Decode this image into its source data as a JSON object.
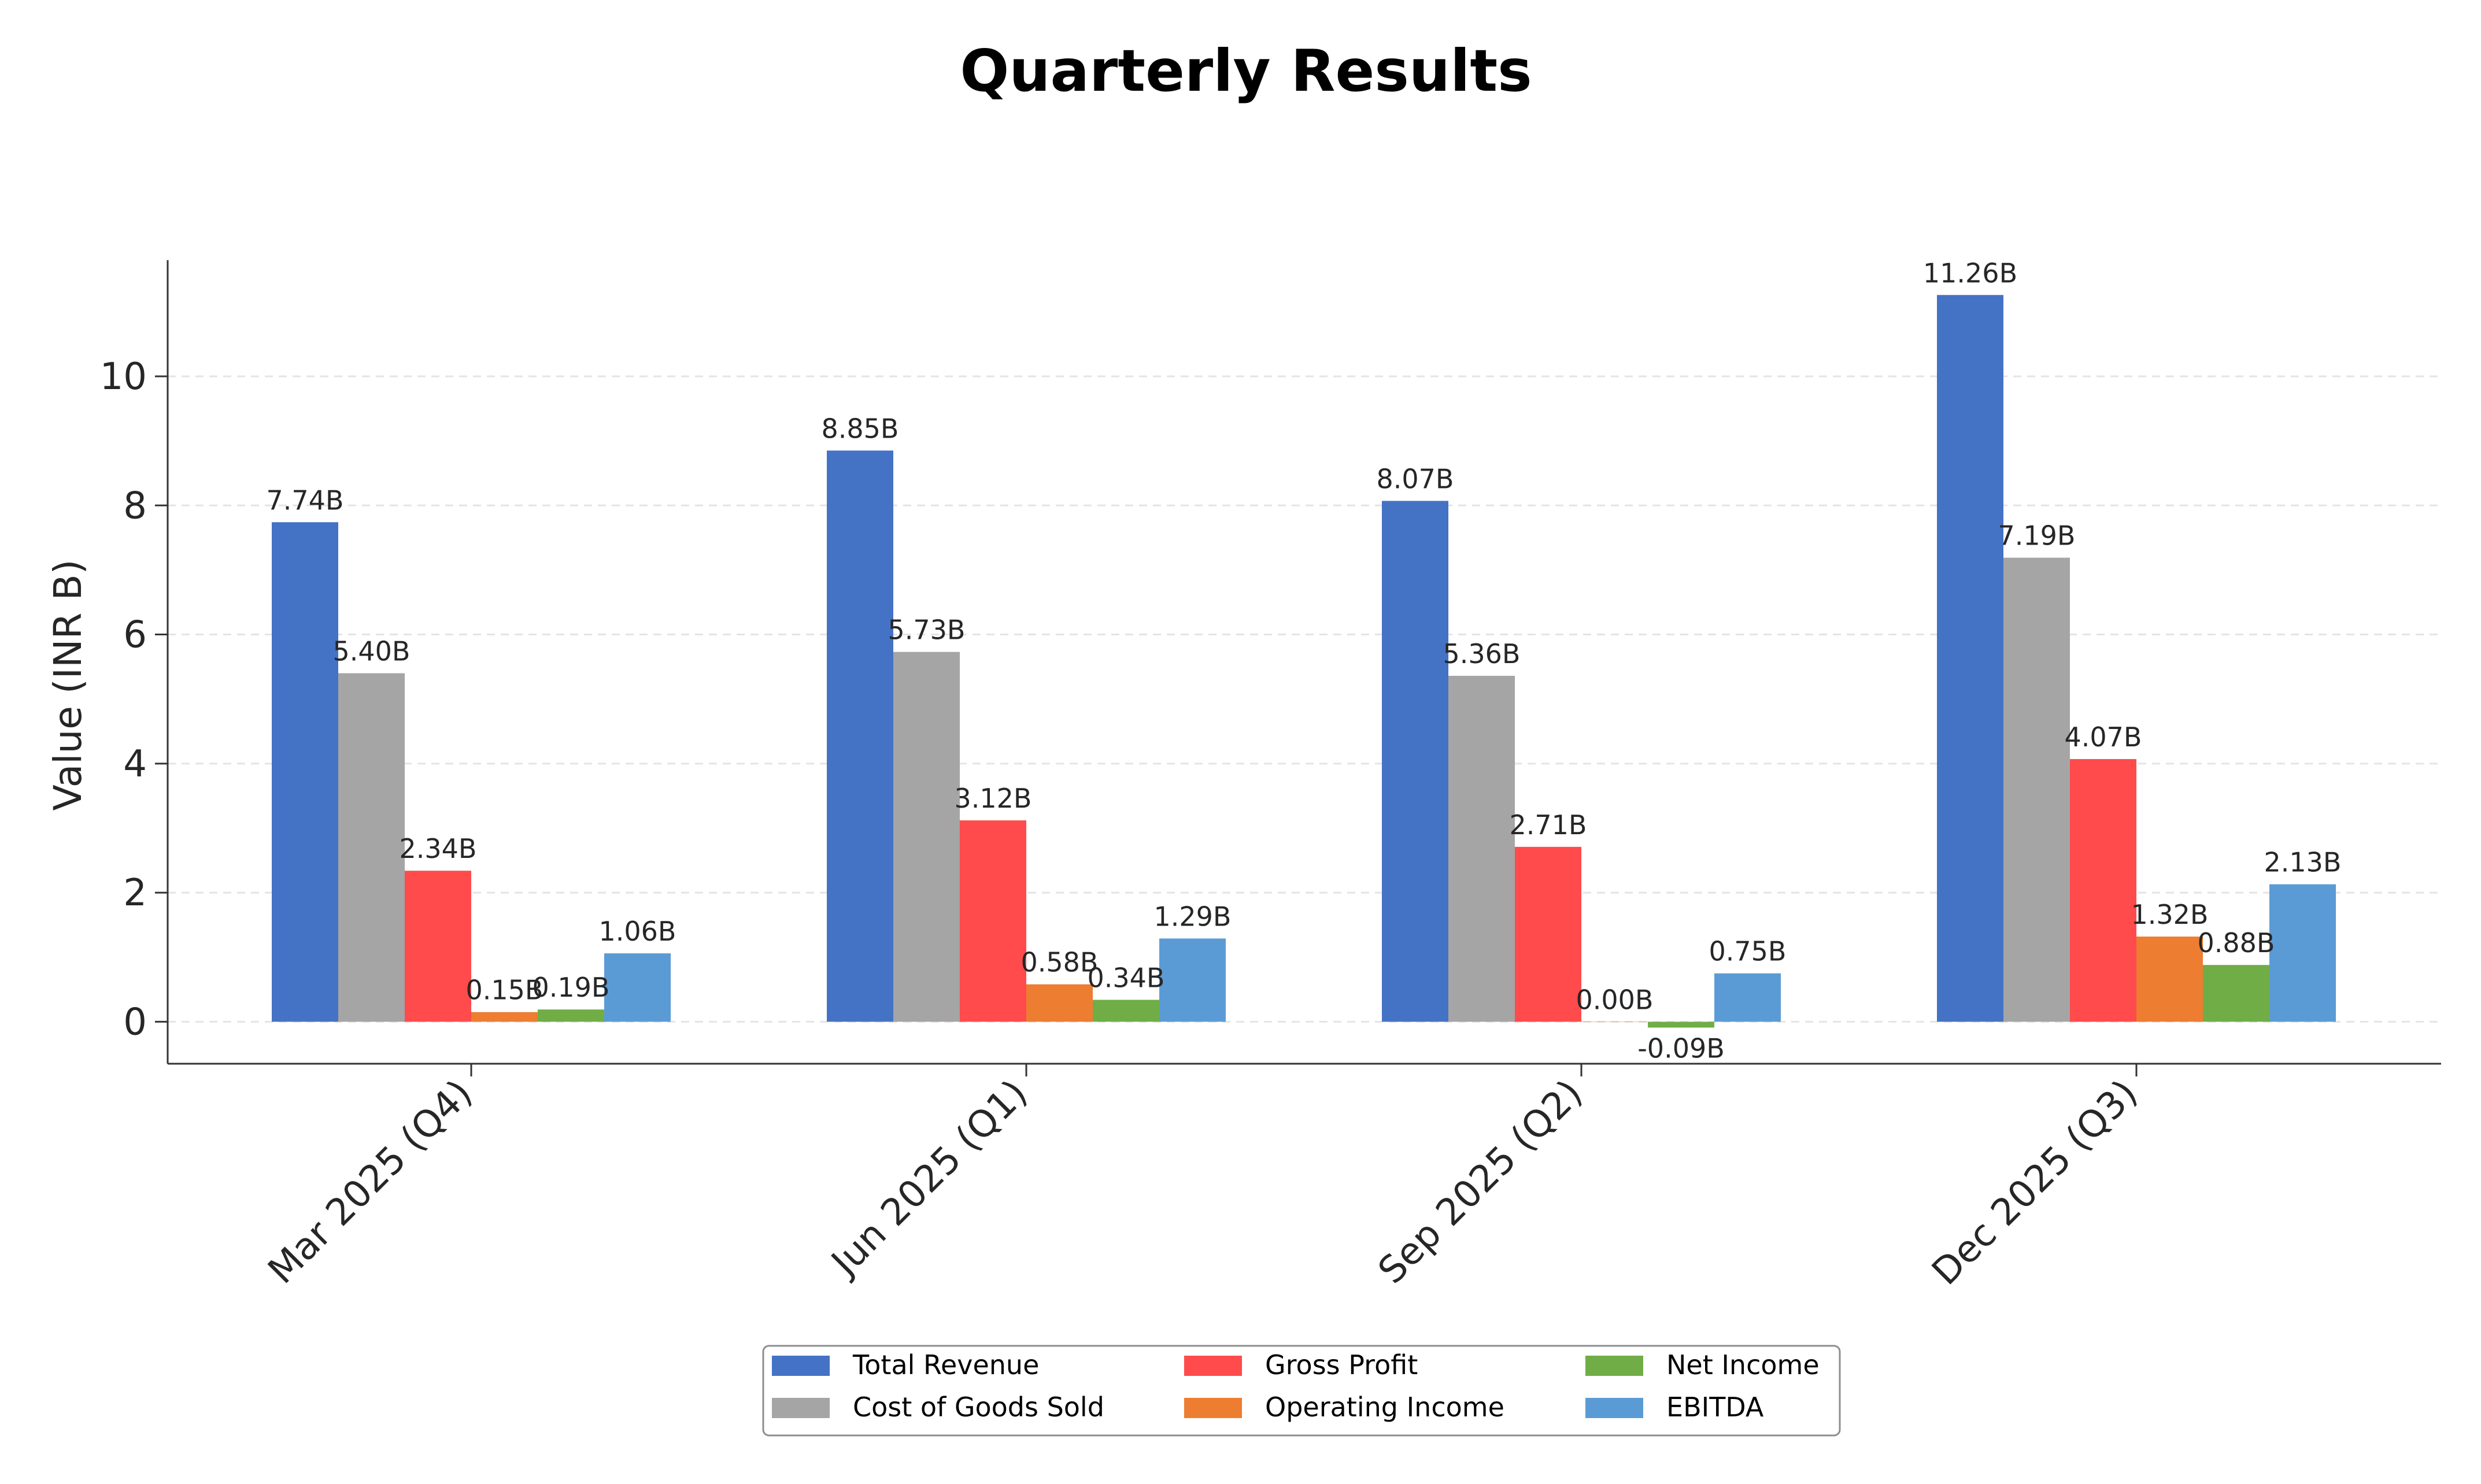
{
  "chart_data": {
    "type": "bar",
    "title": "Quarterly Results",
    "xlabel": "",
    "ylabel": "Value (INR B)",
    "categories": [
      "Mar 2025 (Q4)",
      "Jun 2025 (Q1)",
      "Sep 2025 (Q2)",
      "Dec 2025 (Q3)"
    ],
    "series": [
      {
        "name": "Total Revenue",
        "color": "#4472C4",
        "values": [
          7.74,
          8.85,
          8.07,
          11.26
        ],
        "labels": [
          "7.74B",
          "8.85B",
          "8.07B",
          "11.26B"
        ]
      },
      {
        "name": "Cost of Goods Sold",
        "color": "#A5A5A5",
        "values": [
          5.4,
          5.73,
          5.36,
          7.19
        ],
        "labels": [
          "5.40B",
          "5.73B",
          "5.36B",
          "7.19B"
        ]
      },
      {
        "name": "Gross Profit",
        "color": "#FF4B4B",
        "values": [
          2.34,
          3.12,
          2.71,
          4.07
        ],
        "labels": [
          "2.34B",
          "3.12B",
          "2.71B",
          "4.07B"
        ]
      },
      {
        "name": "Operating Income",
        "color": "#ED7D31",
        "values": [
          0.15,
          0.58,
          0.0,
          1.32
        ],
        "labels": [
          "0.15B",
          "0.58B",
          "0.00B",
          "1.32B"
        ]
      },
      {
        "name": "Net Income",
        "color": "#70AD47",
        "values": [
          0.19,
          0.34,
          -0.09,
          0.88
        ],
        "labels": [
          "0.19B",
          "0.34B",
          "-0.09B",
          "0.88B"
        ]
      },
      {
        "name": "EBITDA",
        "color": "#5B9BD5",
        "values": [
          1.06,
          1.29,
          0.75,
          2.13
        ],
        "labels": [
          "1.06B",
          "1.29B",
          "0.75B",
          "2.13B"
        ]
      }
    ],
    "yticks": [
      0,
      2,
      4,
      6,
      8,
      10
    ],
    "ylim": [
      -0.65,
      11.8
    ],
    "grid": true,
    "legend": "bottom-center"
  }
}
